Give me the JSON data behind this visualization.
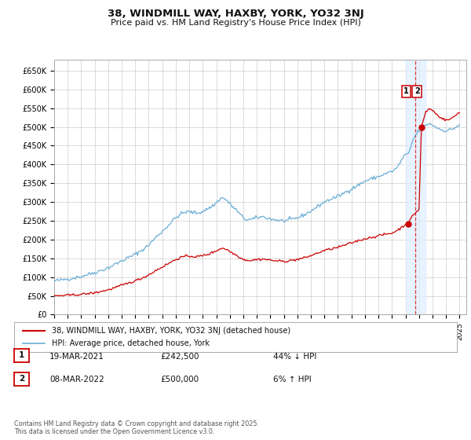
{
  "title": "38, WINDMILL WAY, HAXBY, YORK, YO32 3NJ",
  "subtitle": "Price paid vs. HM Land Registry's House Price Index (HPI)",
  "yticks": [
    0,
    50000,
    100000,
    150000,
    200000,
    250000,
    300000,
    350000,
    400000,
    450000,
    500000,
    550000,
    600000,
    650000
  ],
  "ytick_labels": [
    "£0",
    "£50K",
    "£100K",
    "£150K",
    "£200K",
    "£250K",
    "£300K",
    "£350K",
    "£400K",
    "£450K",
    "£500K",
    "£550K",
    "£600K",
    "£650K"
  ],
  "ylim": [
    0,
    680000
  ],
  "xlim_start": 1995.0,
  "xlim_end": 2025.5,
  "hpi_color": "#6baed6",
  "property_color": "#cc0000",
  "dashed_line_color": "#dd2222",
  "shade_color": "#ddeeff",
  "background_color": "#ffffff",
  "grid_color": "#cccccc",
  "transaction1_x": 2021.21,
  "transaction1_y": 242500,
  "transaction2_x": 2022.18,
  "transaction2_y": 500000,
  "shade_x_start": 2021.0,
  "shade_x_end": 2022.5,
  "vline_x": 2021.7,
  "legend_property": "38, WINDMILL WAY, HAXBY, YORK, YO32 3NJ (detached house)",
  "legend_hpi": "HPI: Average price, detached house, York",
  "note1_box": "1",
  "note2_box": "2",
  "note1_date": "19-MAR-2021",
  "note1_price": "£242,500",
  "note1_info": "44% ↓ HPI",
  "note2_date": "08-MAR-2022",
  "note2_price": "£500,000",
  "note2_info": "6% ↑ HPI",
  "footer": "Contains HM Land Registry data © Crown copyright and database right 2025.\nThis data is licensed under the Open Government Licence v3.0."
}
